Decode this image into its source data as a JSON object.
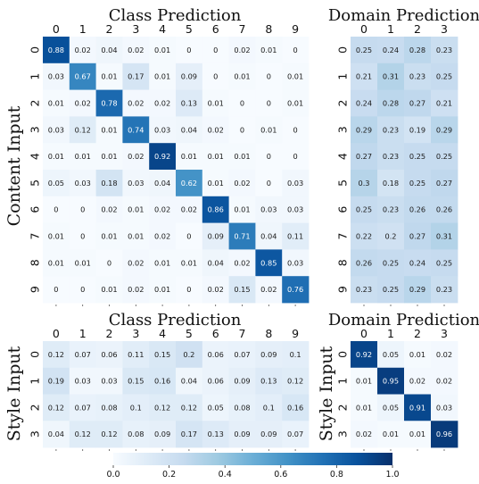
{
  "chart_data": [
    {
      "type": "heatmap",
      "id": "content_class",
      "title": "Class Prediction",
      "ylabel": "Content Input",
      "x_categories": [
        "0",
        "1",
        "2",
        "3",
        "4",
        "5",
        "6",
        "7",
        "8",
        "9"
      ],
      "y_categories": [
        "0",
        "1",
        "2",
        "3",
        "4",
        "5",
        "6",
        "7",
        "8",
        "9"
      ],
      "cell_labels": [
        [
          "0.88",
          "0.02",
          "0.04",
          "0.02",
          "0.01",
          "0",
          "0",
          "0.02",
          "0.01",
          "0"
        ],
        [
          "0.03",
          "0.67",
          "0.01",
          "0.17",
          "0.01",
          "0.09",
          "0",
          "0.01",
          "0",
          "0.01"
        ],
        [
          "0.01",
          "0.02",
          "0.78",
          "0.02",
          "0.02",
          "0.13",
          "0.01",
          "0",
          "0",
          "0.01"
        ],
        [
          "0.03",
          "0.12",
          "0.01",
          "0.74",
          "0.03",
          "0.04",
          "0.02",
          "0",
          "0.01",
          "0"
        ],
        [
          "0.01",
          "0.01",
          "0.01",
          "0.02",
          "0.92",
          "0.01",
          "0.01",
          "0.01",
          "0",
          "0"
        ],
        [
          "0.05",
          "0.03",
          "0.18",
          "0.03",
          "0.04",
          "0.62",
          "0.01",
          "0.02",
          "0",
          "0.03"
        ],
        [
          "0",
          "0",
          "0.02",
          "0.01",
          "0.02",
          "0.02",
          "0.86",
          "0.01",
          "0.03",
          "0.03"
        ],
        [
          "0.01",
          "0",
          "0.01",
          "0.01",
          "0.02",
          "0",
          "0.09",
          "0.71",
          "0.04",
          "0.11"
        ],
        [
          "0.01",
          "0.01",
          "0",
          "0.02",
          "0.01",
          "0.01",
          "0.04",
          "0.02",
          "0.85",
          "0.03"
        ],
        [
          "0",
          "0",
          "0.01",
          "0.02",
          "0.01",
          "0",
          "0.02",
          "0.15",
          "0.02",
          "0.76"
        ]
      ]
    },
    {
      "type": "heatmap",
      "id": "content_domain",
      "title": "Domain Prediction",
      "ylabel": "",
      "x_categories": [
        "0",
        "1",
        "2",
        "3"
      ],
      "y_categories": [
        "0",
        "1",
        "2",
        "3",
        "4",
        "5",
        "6",
        "7",
        "8",
        "9"
      ],
      "cell_labels": [
        [
          "0.25",
          "0.24",
          "0.28",
          "0.23"
        ],
        [
          "0.21",
          "0.31",
          "0.23",
          "0.25"
        ],
        [
          "0.24",
          "0.28",
          "0.27",
          "0.21"
        ],
        [
          "0.29",
          "0.23",
          "0.19",
          "0.29"
        ],
        [
          "0.27",
          "0.23",
          "0.25",
          "0.25"
        ],
        [
          "0.3",
          "0.18",
          "0.25",
          "0.27"
        ],
        [
          "0.25",
          "0.23",
          "0.26",
          "0.26"
        ],
        [
          "0.22",
          "0.2",
          "0.27",
          "0.31"
        ],
        [
          "0.26",
          "0.25",
          "0.24",
          "0.25"
        ],
        [
          "0.23",
          "0.25",
          "0.29",
          "0.23"
        ]
      ]
    },
    {
      "type": "heatmap",
      "id": "style_class",
      "title": "Class Prediction",
      "ylabel": "Style Input",
      "x_categories": [
        "0",
        "1",
        "2",
        "3",
        "4",
        "5",
        "6",
        "7",
        "8",
        "9"
      ],
      "y_categories": [
        "0",
        "1",
        "2",
        "3"
      ],
      "cell_labels": [
        [
          "0.12",
          "0.07",
          "0.06",
          "0.11",
          "0.15",
          "0.2",
          "0.06",
          "0.07",
          "0.09",
          "0.1"
        ],
        [
          "0.19",
          "0.03",
          "0.03",
          "0.15",
          "0.16",
          "0.04",
          "0.06",
          "0.09",
          "0.13",
          "0.12"
        ],
        [
          "0.12",
          "0.07",
          "0.08",
          "0.1",
          "0.12",
          "0.12",
          "0.05",
          "0.08",
          "0.1",
          "0.16"
        ],
        [
          "0.04",
          "0.12",
          "0.12",
          "0.08",
          "0.09",
          "0.17",
          "0.13",
          "0.09",
          "0.09",
          "0.07"
        ]
      ]
    },
    {
      "type": "heatmap",
      "id": "style_domain",
      "title": "Domain Prediction",
      "ylabel": "Style Input",
      "x_categories": [
        "0",
        "1",
        "2",
        "3"
      ],
      "y_categories": [
        "0",
        "1",
        "2",
        "3"
      ],
      "cell_labels": [
        [
          "0.92",
          "0.05",
          "0.01",
          "0.02"
        ],
        [
          "0.01",
          "0.95",
          "0.02",
          "0.02"
        ],
        [
          "0.01",
          "0.05",
          "0.91",
          "0.03"
        ],
        [
          "0.02",
          "0.01",
          "0.01",
          "0.96"
        ]
      ]
    }
  ],
  "colorbar": {
    "range": [
      0.0,
      1.0
    ],
    "tick_values": [
      0.0,
      0.2,
      0.4,
      0.6,
      0.8,
      1.0
    ],
    "tick_labels": [
      "0.0",
      "0.2",
      "0.4",
      "0.6",
      "0.8",
      "1.0"
    ],
    "colors": [
      "#f7fbff",
      "#deebf7",
      "#c6dbef",
      "#9ecae1",
      "#6baed6",
      "#4292c6",
      "#2171b5",
      "#08519c",
      "#08306b"
    ],
    "orientation": "horizontal"
  }
}
